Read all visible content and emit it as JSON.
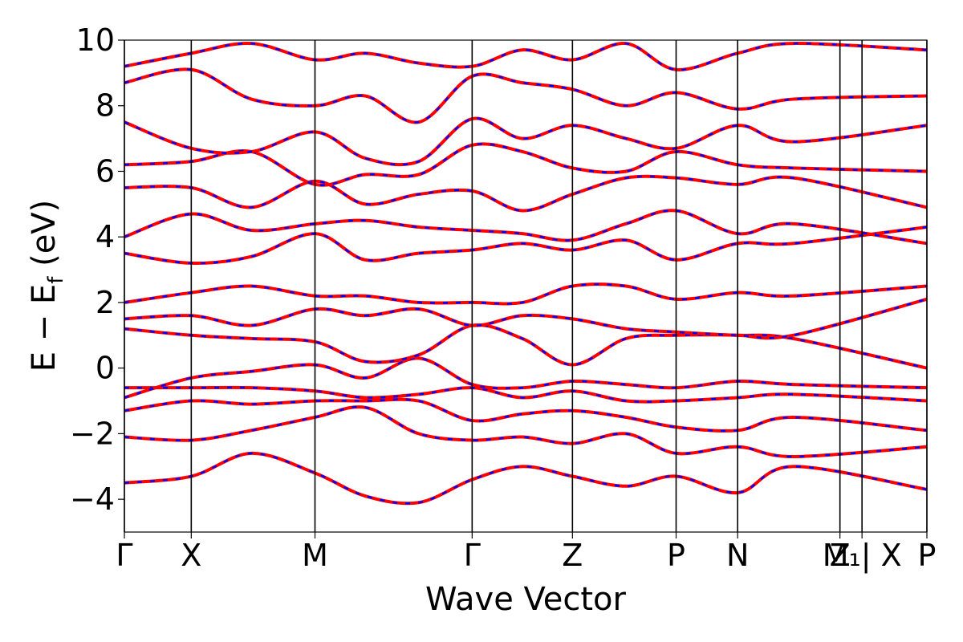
{
  "chart_data": {
    "type": "line",
    "xlabel": "Wave Vector",
    "ylabel": "E − E",
    "ylabel_sub": "f",
    "ylabel_unit": " (eV)",
    "ylim": [
      -5,
      10
    ],
    "yticks": [
      -4,
      -2,
      0,
      2,
      4,
      6,
      8,
      10
    ],
    "ytick_labels": [
      "−4",
      "−2",
      "0",
      "2",
      "4",
      "6",
      "8",
      "10"
    ],
    "xlim": [
      0,
      12
    ],
    "high_symmetry_points": [
      {
        "x": 0.0,
        "label": "Γ"
      },
      {
        "x": 1.0,
        "label": "X"
      },
      {
        "x": 2.85,
        "label": "M"
      },
      {
        "x": 5.2,
        "label": "Γ"
      },
      {
        "x": 6.7,
        "label": "Z"
      },
      {
        "x": 8.25,
        "label": "P"
      },
      {
        "x": 9.17,
        "label": "N"
      },
      {
        "x": 10.7,
        "label": "Z"
      },
      {
        "x": 11.03,
        "label": "M₁| X"
      },
      {
        "x": 12.0,
        "label": "P"
      }
    ],
    "grid": false,
    "line_styles": [
      {
        "color": "#ff0000",
        "style": "solid"
      },
      {
        "color": "#0000ff",
        "style": "dashed"
      }
    ],
    "bands_sampled": [
      [
        -3.5,
        -3.3,
        -2.6,
        -3.2,
        -3.9,
        -4.1,
        -3.4,
        -3.0,
        -3.3,
        -3.6,
        -3.3,
        -3.8,
        -3.0,
        -3.7
      ],
      [
        -2.1,
        -2.2,
        -1.9,
        -1.5,
        -1.2,
        -2.0,
        -2.2,
        -2.1,
        -2.3,
        -2.0,
        -2.6,
        -2.4,
        -2.7,
        -2.4
      ],
      [
        -1.3,
        -1.0,
        -1.1,
        -1.0,
        -1.0,
        -1.0,
        -1.6,
        -1.4,
        -1.3,
        -1.5,
        -1.8,
        -1.9,
        -1.5,
        -1.9
      ],
      [
        -0.6,
        -0.6,
        -0.6,
        -0.7,
        -0.9,
        -0.8,
        -0.6,
        -0.9,
        -0.7,
        -1.0,
        -1.0,
        -0.9,
        -0.8,
        -1.0
      ],
      [
        -0.9,
        -0.3,
        -0.1,
        0.1,
        -0.3,
        0.3,
        -0.5,
        -0.6,
        -0.4,
        -0.5,
        -0.6,
        -0.4,
        -0.5,
        -0.6
      ],
      [
        1.2,
        1.0,
        0.9,
        0.8,
        0.2,
        0.4,
        1.3,
        0.9,
        0.1,
        0.9,
        1.0,
        1.0,
        0.9,
        0.0
      ],
      [
        1.5,
        1.6,
        1.3,
        1.8,
        1.6,
        1.8,
        1.3,
        1.6,
        1.5,
        1.2,
        1.1,
        1.0,
        1.0,
        2.1
      ],
      [
        2.0,
        2.3,
        2.5,
        2.2,
        2.2,
        2.0,
        2.0,
        2.0,
        2.5,
        2.5,
        2.1,
        2.3,
        2.2,
        2.5
      ],
      [
        3.5,
        3.2,
        3.4,
        4.1,
        3.3,
        3.5,
        3.6,
        3.8,
        3.6,
        3.9,
        3.3,
        3.8,
        3.8,
        4.3
      ],
      [
        4.0,
        4.7,
        4.2,
        4.4,
        4.5,
        4.3,
        4.2,
        4.1,
        3.9,
        4.4,
        4.8,
        4.1,
        4.4,
        3.8
      ],
      [
        5.5,
        5.5,
        4.9,
        5.7,
        5.0,
        5.3,
        5.4,
        4.8,
        5.3,
        5.8,
        5.8,
        5.6,
        5.8,
        4.9
      ],
      [
        6.2,
        6.3,
        6.6,
        5.6,
        5.9,
        5.9,
        6.8,
        6.6,
        6.1,
        6.0,
        6.6,
        6.2,
        6.1,
        6.0
      ],
      [
        7.5,
        6.7,
        6.6,
        7.2,
        6.4,
        6.3,
        7.6,
        7.0,
        7.4,
        7.0,
        6.7,
        7.4,
        6.9,
        7.4
      ],
      [
        8.7,
        9.1,
        8.2,
        8.0,
        8.3,
        7.5,
        8.9,
        8.7,
        8.5,
        8.0,
        8.4,
        7.9,
        8.2,
        8.3
      ],
      [
        9.2,
        9.6,
        9.9,
        9.4,
        9.6,
        9.3,
        9.2,
        9.7,
        9.4,
        9.9,
        9.1,
        9.6,
        9.9,
        9.7
      ]
    ],
    "bands_sample_x": [
      0.0,
      1.0,
      1.9,
      2.85,
      3.6,
      4.4,
      5.2,
      5.95,
      6.7,
      7.5,
      8.25,
      9.17,
      10.0,
      12.0
    ]
  }
}
